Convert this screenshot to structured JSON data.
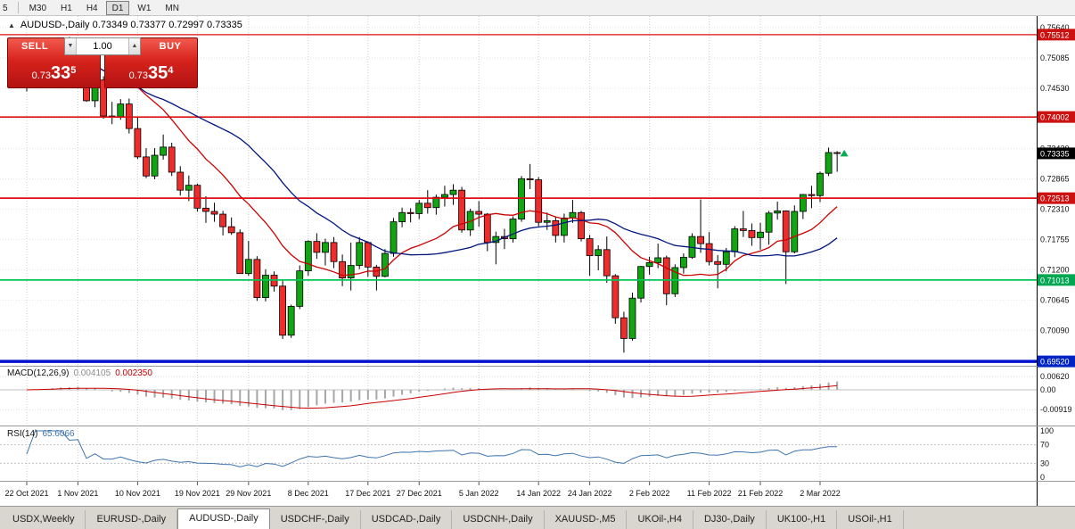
{
  "toolbar": {
    "partial_button": "5",
    "timeframes": [
      "M30",
      "H1",
      "H4",
      "D1",
      "W1",
      "MN"
    ],
    "active_timeframe": "D1"
  },
  "chart_header": {
    "collapse_icon": "▲",
    "symbol_line": "AUDUSD-,Daily  0.73349 0.73377 0.72997 0.73335"
  },
  "one_click": {
    "sell_label": "SELL",
    "buy_label": "BUY",
    "volume": "1.00",
    "spin_down_icon": "▼",
    "spin_up_icon": "▲",
    "sell_price": {
      "prefix": "0.73",
      "big": "33",
      "sup": "5"
    },
    "buy_price": {
      "prefix": "0.73",
      "big": "35",
      "sup": "4"
    }
  },
  "indicators": {
    "macd_label": "MACD(12,26,9)",
    "macd_value": "0.004105",
    "macd_signal_value": "0.002350",
    "macd_axis": [
      "0.00620",
      "0.00",
      "-0.00919"
    ],
    "rsi_label": "RSI(14)",
    "rsi_value": "65.6066",
    "rsi_axis": [
      "100",
      "70",
      "30",
      "0"
    ]
  },
  "price_axis": {
    "labels": [
      "0.75640",
      "0.75085",
      "0.74530",
      "0.73975",
      "0.73420",
      "0.72865",
      "0.72310",
      "0.71755",
      "0.71200",
      "0.70645",
      "0.70090",
      "0.69535"
    ],
    "tags": [
      {
        "value": "0.75512",
        "color": "#cc1111"
      },
      {
        "value": "0.74002",
        "color": "#cc1111"
      },
      {
        "value": "0.72513",
        "color": "#cc1111"
      },
      {
        "value": "0.71013",
        "color": "#00a651"
      },
      {
        "value": "0.69520",
        "color": "#0024c4"
      },
      {
        "value": "0.73335",
        "color": "#000000"
      }
    ]
  },
  "hlines": [
    {
      "value": 0.75512,
      "color": "#dd1111",
      "width": 1.2
    },
    {
      "value": 0.74002,
      "color": "#dd1111",
      "width": 1.6
    },
    {
      "value": 0.72513,
      "color": "#dd1111",
      "width": 1.8
    },
    {
      "value": 0.71013,
      "color": "#00c455",
      "width": 1.8
    },
    {
      "value": 0.6952,
      "color": "#0013cc",
      "width": 3.5
    }
  ],
  "tabs": {
    "items": [
      "USDX,Weekly",
      "EURUSD-,Daily",
      "AUDUSD-,Daily",
      "USDCHF-,Daily",
      "USDCAD-,Daily",
      "USDCNH-,Daily",
      "XAUUSD-,M5",
      "UKOil-,H4",
      "DJ30-,Daily",
      "UK100-,H1",
      "USOil-,H1"
    ],
    "active": "AUDUSD-,Daily"
  },
  "chart_data": {
    "type": "candlestick",
    "symbol": "AUDUSD-",
    "period": "Daily",
    "ohlc_current": {
      "open": 0.73349,
      "high": 0.73377,
      "low": 0.72997,
      "close": 0.73335
    },
    "ylim": [
      0.6944,
      0.75853
    ],
    "colors": {
      "up": "#11a511",
      "down": "#ee2c2c",
      "wick": "#000000",
      "ma_fast": "#cc0000",
      "ma_slow": "#00157e",
      "macd_histogram": "#a6a6a6",
      "macd_signal": "#cc0000",
      "rsi_line": "#3f74ad",
      "marker": "#00b050"
    },
    "overlays": [
      {
        "name": "SMA fast",
        "period": 13,
        "color": "#cc0000"
      },
      {
        "name": "SMA slow",
        "period": 26,
        "color": "#00157e"
      }
    ],
    "macd": {
      "fast": 12,
      "slow": 26,
      "signal_period": 9
    },
    "rsi": {
      "period": 14
    },
    "x_labels": [
      {
        "label": "22 Oct 2021",
        "index": 0
      },
      {
        "label": "1 Nov 2021",
        "index": 6
      },
      {
        "label": "10 Nov 2021",
        "index": 13
      },
      {
        "label": "19 Nov 2021",
        "index": 20
      },
      {
        "label": "29 Nov 2021",
        "index": 26
      },
      {
        "label": "8 Dec 2021",
        "index": 33
      },
      {
        "label": "17 Dec 2021",
        "index": 40
      },
      {
        "label": "27 Dec 2021",
        "index": 46
      },
      {
        "label": "5 Jan 2022",
        "index": 53
      },
      {
        "label": "14 Jan 2022",
        "index": 60
      },
      {
        "label": "24 Jan 2022",
        "index": 66
      },
      {
        "label": "2 Feb 2022",
        "index": 73
      },
      {
        "label": "11 Feb 2022",
        "index": 80
      },
      {
        "label": "21 Feb 2022",
        "index": 86
      },
      {
        "label": "2 Mar 2022",
        "index": 93
      }
    ],
    "candles": [
      [
        0.7456,
        0.7481,
        0.7447,
        0.7465
      ],
      [
        0.7465,
        0.7495,
        0.7456,
        0.7488
      ],
      [
        0.7488,
        0.7522,
        0.7478,
        0.7503
      ],
      [
        0.7503,
        0.7536,
        0.7488,
        0.7518
      ],
      [
        0.7518,
        0.7542,
        0.7499,
        0.7536
      ],
      [
        0.7536,
        0.7547,
        0.7509,
        0.7518
      ],
      [
        0.7518,
        0.7535,
        0.7498,
        0.7525
      ],
      [
        0.7525,
        0.7532,
        0.7428,
        0.743
      ],
      [
        0.743,
        0.7475,
        0.7418,
        0.7468
      ],
      [
        0.7468,
        0.7475,
        0.7397,
        0.7402
      ],
      [
        0.7402,
        0.7428,
        0.7387,
        0.7401
      ],
      [
        0.7401,
        0.7433,
        0.7395,
        0.7424
      ],
      [
        0.7424,
        0.7434,
        0.737,
        0.7379
      ],
      [
        0.7379,
        0.7399,
        0.7323,
        0.7327
      ],
      [
        0.7327,
        0.7343,
        0.7288,
        0.7292
      ],
      [
        0.7292,
        0.7343,
        0.7286,
        0.733
      ],
      [
        0.733,
        0.7368,
        0.7322,
        0.7345
      ],
      [
        0.7345,
        0.7353,
        0.7292,
        0.7299
      ],
      [
        0.7299,
        0.731,
        0.7256,
        0.7266
      ],
      [
        0.7266,
        0.7293,
        0.7246,
        0.7275
      ],
      [
        0.7275,
        0.7278,
        0.7227,
        0.7233
      ],
      [
        0.7233,
        0.7255,
        0.7206,
        0.7227
      ],
      [
        0.7227,
        0.7243,
        0.7208,
        0.7222
      ],
      [
        0.7222,
        0.7228,
        0.7183,
        0.7199
      ],
      [
        0.7199,
        0.7216,
        0.7184,
        0.7188
      ],
      [
        0.7188,
        0.7194,
        0.7113,
        0.7113
      ],
      [
        0.7113,
        0.7173,
        0.7109,
        0.7139
      ],
      [
        0.7139,
        0.7145,
        0.7063,
        0.7069
      ],
      [
        0.7069,
        0.7121,
        0.7062,
        0.711
      ],
      [
        0.711,
        0.7117,
        0.708,
        0.709
      ],
      [
        0.709,
        0.71,
        0.6993,
        0.7
      ],
      [
        0.7,
        0.7056,
        0.6995,
        0.7053
      ],
      [
        0.7053,
        0.7128,
        0.7048,
        0.7118
      ],
      [
        0.7118,
        0.7174,
        0.7109,
        0.7172
      ],
      [
        0.7172,
        0.7187,
        0.714,
        0.7152
      ],
      [
        0.7152,
        0.7177,
        0.7128,
        0.717
      ],
      [
        0.717,
        0.718,
        0.7123,
        0.7135
      ],
      [
        0.7135,
        0.7148,
        0.709,
        0.7105
      ],
      [
        0.7105,
        0.717,
        0.7082,
        0.7128
      ],
      [
        0.7128,
        0.718,
        0.7121,
        0.717
      ],
      [
        0.717,
        0.7172,
        0.7107,
        0.7125
      ],
      [
        0.7125,
        0.7129,
        0.7082,
        0.7108
      ],
      [
        0.7108,
        0.7158,
        0.7106,
        0.715
      ],
      [
        0.715,
        0.7215,
        0.7144,
        0.7208
      ],
      [
        0.7208,
        0.7234,
        0.7198,
        0.7225
      ],
      [
        0.7225,
        0.7233,
        0.7207,
        0.7223
      ],
      [
        0.7223,
        0.7248,
        0.7213,
        0.7242
      ],
      [
        0.7242,
        0.7266,
        0.7223,
        0.7234
      ],
      [
        0.7234,
        0.7258,
        0.7221,
        0.7253
      ],
      [
        0.7253,
        0.7274,
        0.7236,
        0.7258
      ],
      [
        0.7258,
        0.7277,
        0.7239,
        0.7266
      ],
      [
        0.7266,
        0.7272,
        0.7188,
        0.7193
      ],
      [
        0.7193,
        0.7232,
        0.7182,
        0.7227
      ],
      [
        0.7227,
        0.7246,
        0.7199,
        0.7222
      ],
      [
        0.7222,
        0.7224,
        0.7154,
        0.717
      ],
      [
        0.717,
        0.719,
        0.713,
        0.7181
      ],
      [
        0.7181,
        0.7195,
        0.7158,
        0.7177
      ],
      [
        0.7177,
        0.7218,
        0.717,
        0.7213
      ],
      [
        0.7213,
        0.7292,
        0.7208,
        0.7287
      ],
      [
        0.7287,
        0.7314,
        0.7268,
        0.7285
      ],
      [
        0.7285,
        0.729,
        0.72,
        0.7207
      ],
      [
        0.7207,
        0.7225,
        0.7193,
        0.721
      ],
      [
        0.721,
        0.7218,
        0.717,
        0.7183
      ],
      [
        0.7183,
        0.7223,
        0.717,
        0.7215
      ],
      [
        0.7215,
        0.7248,
        0.7206,
        0.7225
      ],
      [
        0.7225,
        0.7228,
        0.7172,
        0.7177
      ],
      [
        0.7177,
        0.7184,
        0.7109,
        0.7146
      ],
      [
        0.7146,
        0.7165,
        0.7119,
        0.7157
      ],
      [
        0.7157,
        0.7181,
        0.7096,
        0.7109
      ],
      [
        0.7109,
        0.7112,
        0.7021,
        0.7032
      ],
      [
        0.7032,
        0.7043,
        0.6968,
        0.6994
      ],
      [
        0.6994,
        0.7078,
        0.699,
        0.7068
      ],
      [
        0.7068,
        0.7127,
        0.706,
        0.7126
      ],
      [
        0.7126,
        0.7144,
        0.7111,
        0.7133
      ],
      [
        0.7133,
        0.7168,
        0.7123,
        0.7142
      ],
      [
        0.7142,
        0.7146,
        0.7055,
        0.7076
      ],
      [
        0.7076,
        0.713,
        0.707,
        0.7124
      ],
      [
        0.7124,
        0.715,
        0.7113,
        0.7143
      ],
      [
        0.7143,
        0.7187,
        0.714,
        0.7181
      ],
      [
        0.7181,
        0.7249,
        0.7151,
        0.7168
      ],
      [
        0.7168,
        0.7189,
        0.7128,
        0.7135
      ],
      [
        0.7135,
        0.7147,
        0.7086,
        0.713
      ],
      [
        0.713,
        0.716,
        0.7117,
        0.7153
      ],
      [
        0.7153,
        0.72,
        0.7143,
        0.7195
      ],
      [
        0.7195,
        0.7228,
        0.718,
        0.7192
      ],
      [
        0.7192,
        0.7205,
        0.7164,
        0.7179
      ],
      [
        0.7179,
        0.7206,
        0.7157,
        0.7189
      ],
      [
        0.7189,
        0.7228,
        0.7166,
        0.7224
      ],
      [
        0.7224,
        0.7245,
        0.7212,
        0.7228
      ],
      [
        0.7228,
        0.7229,
        0.7094,
        0.7153
      ],
      [
        0.7153,
        0.7238,
        0.715,
        0.7227
      ],
      [
        0.7227,
        0.7259,
        0.7213,
        0.7258
      ],
      [
        0.7258,
        0.7274,
        0.7233,
        0.7256
      ],
      [
        0.7256,
        0.73,
        0.7244,
        0.7297
      ],
      [
        0.7297,
        0.7344,
        0.7292,
        0.7335
      ],
      [
        0.73349,
        0.73377,
        0.72997,
        0.73335
      ]
    ]
  }
}
